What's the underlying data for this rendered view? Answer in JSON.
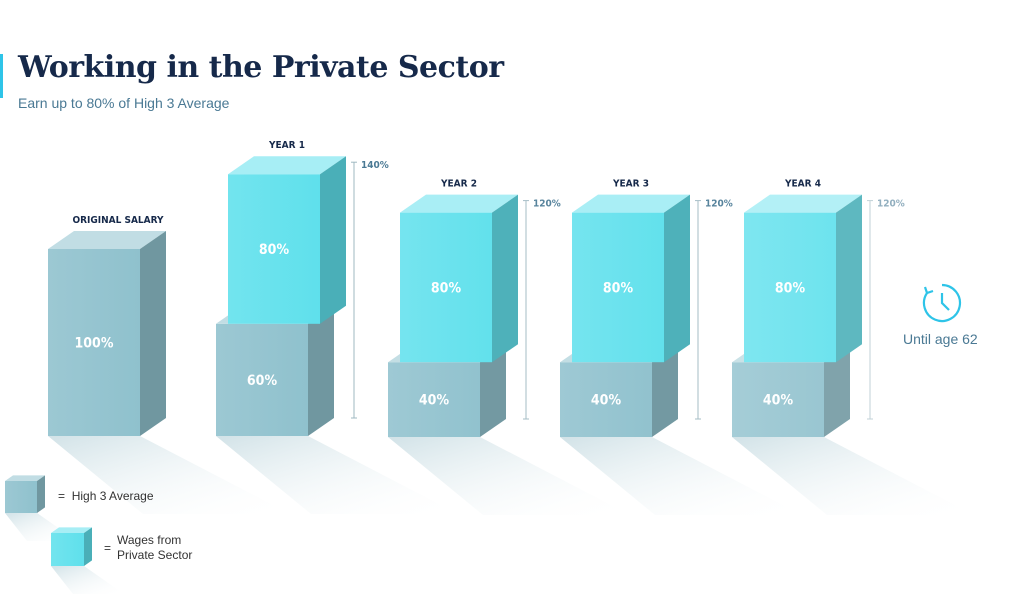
{
  "header": {
    "title": "Working in the Private Sector",
    "subtitle": "Earn up to 80% of High 3 Average"
  },
  "colors": {
    "high3": "#8fc1cd",
    "private": "#5fe0ec",
    "accent": "#2ec4e8",
    "title": "#16294a",
    "text": "#4a7994"
  },
  "chart_data": {
    "type": "bar",
    "stacked": true,
    "categories": [
      "ORIGINAL SALARY",
      "YEAR 1",
      "YEAR 2",
      "YEAR 3",
      "YEAR 4"
    ],
    "series": [
      {
        "name": "High 3 Average",
        "values": [
          100,
          60,
          40,
          40,
          40
        ],
        "labels": [
          "100%",
          "60%",
          "40%",
          "40%",
          "40%"
        ]
      },
      {
        "name": "Wages from Private Sector",
        "values": [
          0,
          80,
          80,
          80,
          80
        ],
        "labels": [
          "",
          "80%",
          "80%",
          "80%",
          "80%"
        ]
      }
    ],
    "totals": [
      null,
      140,
      120,
      120,
      120
    ],
    "total_labels": [
      "",
      "140%",
      "120%",
      "120%",
      "120%"
    ],
    "unit": "%"
  },
  "legend": {
    "items": [
      {
        "symbol": "=",
        "label": "High 3 Average",
        "icon": "high3-cube-icon"
      },
      {
        "symbol": "=",
        "label": "Wages from Private Sector",
        "icon": "private-cube-icon"
      }
    ]
  },
  "annotation": {
    "icon": "clock-icon",
    "text": "Until age 62"
  }
}
